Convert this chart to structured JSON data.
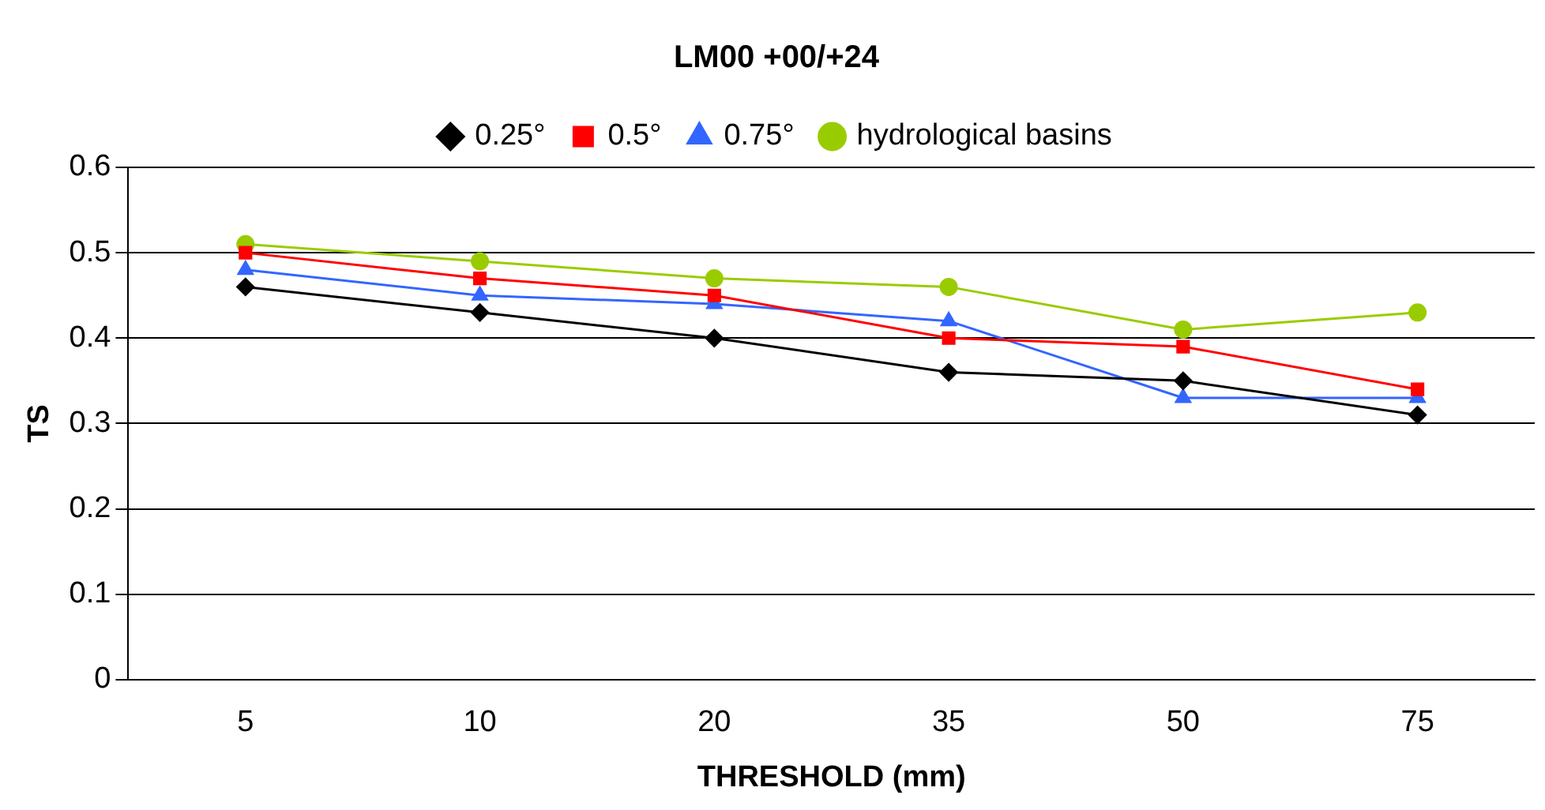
{
  "chart_data": {
    "type": "line",
    "title": "LM00 +00/+24",
    "xlabel": "THRESHOLD (mm)",
    "ylabel": "TS",
    "categories": [
      "5",
      "10",
      "20",
      "35",
      "50",
      "75"
    ],
    "series": [
      {
        "name": "0.25°",
        "color": "#000000",
        "marker": "diamond",
        "values": [
          0.46,
          0.43,
          0.4,
          0.36,
          0.35,
          0.31
        ]
      },
      {
        "name": "0.5°",
        "color": "#ff0000",
        "marker": "square",
        "values": [
          0.5,
          0.47,
          0.45,
          0.4,
          0.39,
          0.34
        ]
      },
      {
        "name": "0.75°",
        "color": "#3366ff",
        "marker": "triangle",
        "values": [
          0.48,
          0.45,
          0.44,
          0.42,
          0.33,
          0.33
        ]
      },
      {
        "name": "hydrological basins",
        "color": "#99cc00",
        "marker": "circle",
        "values": [
          0.51,
          0.49,
          0.47,
          0.46,
          0.41,
          0.43
        ]
      }
    ],
    "ylim": [
      0,
      0.6
    ],
    "yticks": [
      0,
      0.1,
      0.2,
      0.3,
      0.4,
      0.5,
      0.6
    ],
    "grid": "y",
    "legend": "top"
  }
}
